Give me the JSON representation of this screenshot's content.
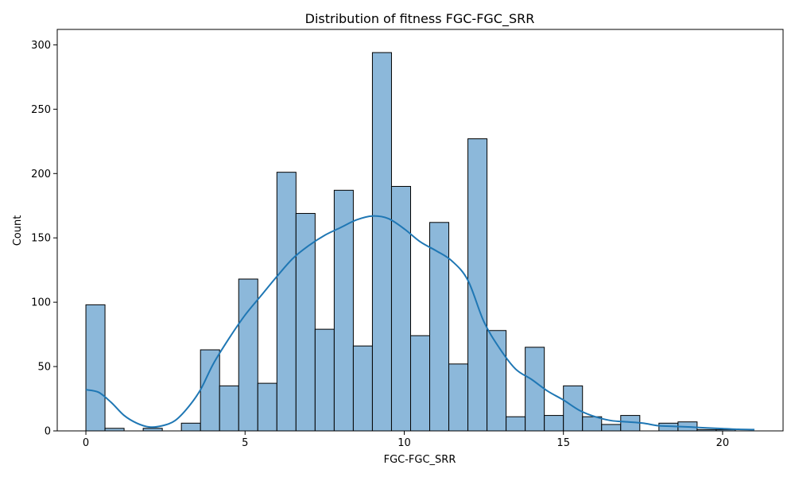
{
  "chart_data": {
    "type": "bar",
    "title": "Distribution of fitness FGC-FGC_SRR",
    "xlabel": "FGC-FGC_SRR",
    "ylabel": "Count",
    "xlim": [
      -0.9,
      21.9
    ],
    "ylim": [
      0,
      312
    ],
    "xticks": [
      0,
      5,
      10,
      15,
      20
    ],
    "yticks": [
      0,
      50,
      100,
      150,
      200,
      250,
      300
    ],
    "bin_width": 0.6,
    "bins": [
      {
        "x0": 0.0,
        "x1": 0.6,
        "count": 98
      },
      {
        "x0": 0.6,
        "x1": 1.2,
        "count": 2
      },
      {
        "x0": 1.2,
        "x1": 1.8,
        "count": 0
      },
      {
        "x0": 1.8,
        "x1": 2.4,
        "count": 2
      },
      {
        "x0": 2.4,
        "x1": 3.0,
        "count": 0
      },
      {
        "x0": 3.0,
        "x1": 3.6,
        "count": 6
      },
      {
        "x0": 3.6,
        "x1": 4.2,
        "count": 63
      },
      {
        "x0": 4.2,
        "x1": 4.8,
        "count": 35
      },
      {
        "x0": 4.8,
        "x1": 5.4,
        "count": 118
      },
      {
        "x0": 5.4,
        "x1": 6.0,
        "count": 37
      },
      {
        "x0": 6.0,
        "x1": 6.6,
        "count": 201
      },
      {
        "x0": 6.6,
        "x1": 7.2,
        "count": 169
      },
      {
        "x0": 7.2,
        "x1": 7.8,
        "count": 79
      },
      {
        "x0": 7.8,
        "x1": 8.4,
        "count": 187
      },
      {
        "x0": 8.4,
        "x1": 9.0,
        "count": 66
      },
      {
        "x0": 9.0,
        "x1": 9.6,
        "count": 294
      },
      {
        "x0": 9.6,
        "x1": 10.2,
        "count": 190
      },
      {
        "x0": 10.2,
        "x1": 10.8,
        "count": 74
      },
      {
        "x0": 10.8,
        "x1": 11.4,
        "count": 162
      },
      {
        "x0": 11.4,
        "x1": 12.0,
        "count": 52
      },
      {
        "x0": 12.0,
        "x1": 12.6,
        "count": 227
      },
      {
        "x0": 12.6,
        "x1": 13.2,
        "count": 78
      },
      {
        "x0": 13.2,
        "x1": 13.8,
        "count": 11
      },
      {
        "x0": 13.8,
        "x1": 14.4,
        "count": 65
      },
      {
        "x0": 14.4,
        "x1": 15.0,
        "count": 12
      },
      {
        "x0": 15.0,
        "x1": 15.6,
        "count": 35
      },
      {
        "x0": 15.6,
        "x1": 16.2,
        "count": 11
      },
      {
        "x0": 16.2,
        "x1": 16.8,
        "count": 5
      },
      {
        "x0": 16.8,
        "x1": 17.4,
        "count": 12
      },
      {
        "x0": 17.4,
        "x1": 18.0,
        "count": 0
      },
      {
        "x0": 18.0,
        "x1": 18.6,
        "count": 6
      },
      {
        "x0": 18.6,
        "x1": 19.2,
        "count": 7
      },
      {
        "x0": 19.2,
        "x1": 19.8,
        "count": 1
      },
      {
        "x0": 19.8,
        "x1": 20.4,
        "count": 1
      },
      {
        "x0": 20.4,
        "x1": 21.0,
        "count": 0
      }
    ],
    "kde": {
      "x": [
        0.0,
        0.4,
        0.8,
        1.2,
        1.6,
        2.0,
        2.4,
        2.8,
        3.2,
        3.6,
        4.0,
        4.5,
        5.0,
        5.5,
        6.0,
        6.5,
        7.0,
        7.5,
        8.0,
        8.5,
        9.0,
        9.5,
        10.0,
        10.5,
        11.0,
        11.5,
        12.0,
        12.5,
        13.0,
        13.5,
        14.0,
        14.5,
        15.0,
        15.5,
        16.0,
        16.5,
        17.0,
        17.5,
        18.0,
        18.5,
        19.0,
        19.5,
        20.0,
        20.5,
        21.0
      ],
      "y": [
        32,
        30,
        22,
        12,
        6,
        3,
        4,
        8,
        18,
        32,
        52,
        72,
        90,
        105,
        120,
        134,
        144,
        152,
        158,
        164,
        167,
        165,
        157,
        147,
        140,
        132,
        117,
        85,
        64,
        48,
        40,
        31,
        24,
        16,
        11,
        8,
        7,
        6,
        4,
        3.5,
        3,
        2.3,
        1.8,
        1.2,
        1
      ]
    },
    "colors": {
      "bar_fill": "#8cb8da",
      "bar_edge": "#000000",
      "kde_line": "#1f77b4"
    },
    "grid": false,
    "legend": "none"
  }
}
